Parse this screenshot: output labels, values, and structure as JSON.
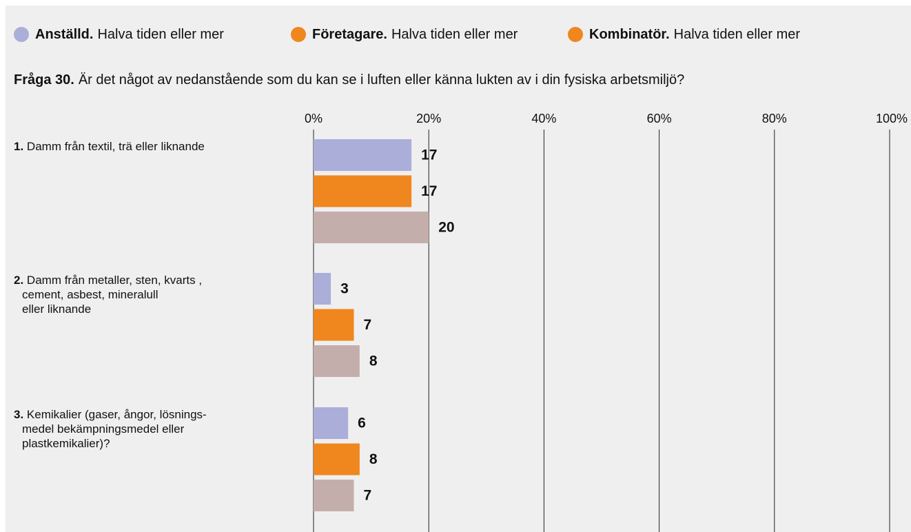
{
  "chart_data": {
    "type": "bar",
    "orientation": "horizontal",
    "title_prefix": "Fråga 30.",
    "title": "Är det något av nedanstående som du kan se i luften  eller känna lukten av i din fysiska arbetsmiljö?",
    "category_numbers": [
      "1.",
      "2.",
      "3."
    ],
    "categories": [
      "Damm från textil, trä eller liknande",
      "Damm från metaller, sten, kvarts ,\ncement, asbest, mineralull\neller liknande",
      "Kemikalier (gaser, ångor, lösnings-\nmedel bekämpningsmedel eller\nplastkemikalier)?"
    ],
    "series": [
      {
        "name": "Anställd.",
        "description": "Halva tiden eller mer",
        "color": "#abaed9",
        "legend_color": "#abaed9",
        "values": [
          17,
          3,
          6
        ]
      },
      {
        "name": "Företagare.",
        "description": "Halva tiden eller mer",
        "color": "#f0861e",
        "legend_color": "#f0861e",
        "values": [
          17,
          7,
          8
        ]
      },
      {
        "name": "Kombinatör.",
        "description": "Halva tiden eller mer",
        "color": "#c4aeac",
        "legend_color": "#f0861e",
        "values": [
          20,
          8,
          7
        ]
      }
    ],
    "xlim": [
      0,
      100
    ],
    "xticks": [
      {
        "value": 0,
        "label": "0%"
      },
      {
        "value": 20,
        "label": "20%"
      },
      {
        "value": 40,
        "label": "40%"
      },
      {
        "value": 60,
        "label": "60%"
      },
      {
        "value": 80,
        "label": "80%"
      },
      {
        "value": 100,
        "label": "100%"
      }
    ],
    "grid": true,
    "legend": "top"
  }
}
